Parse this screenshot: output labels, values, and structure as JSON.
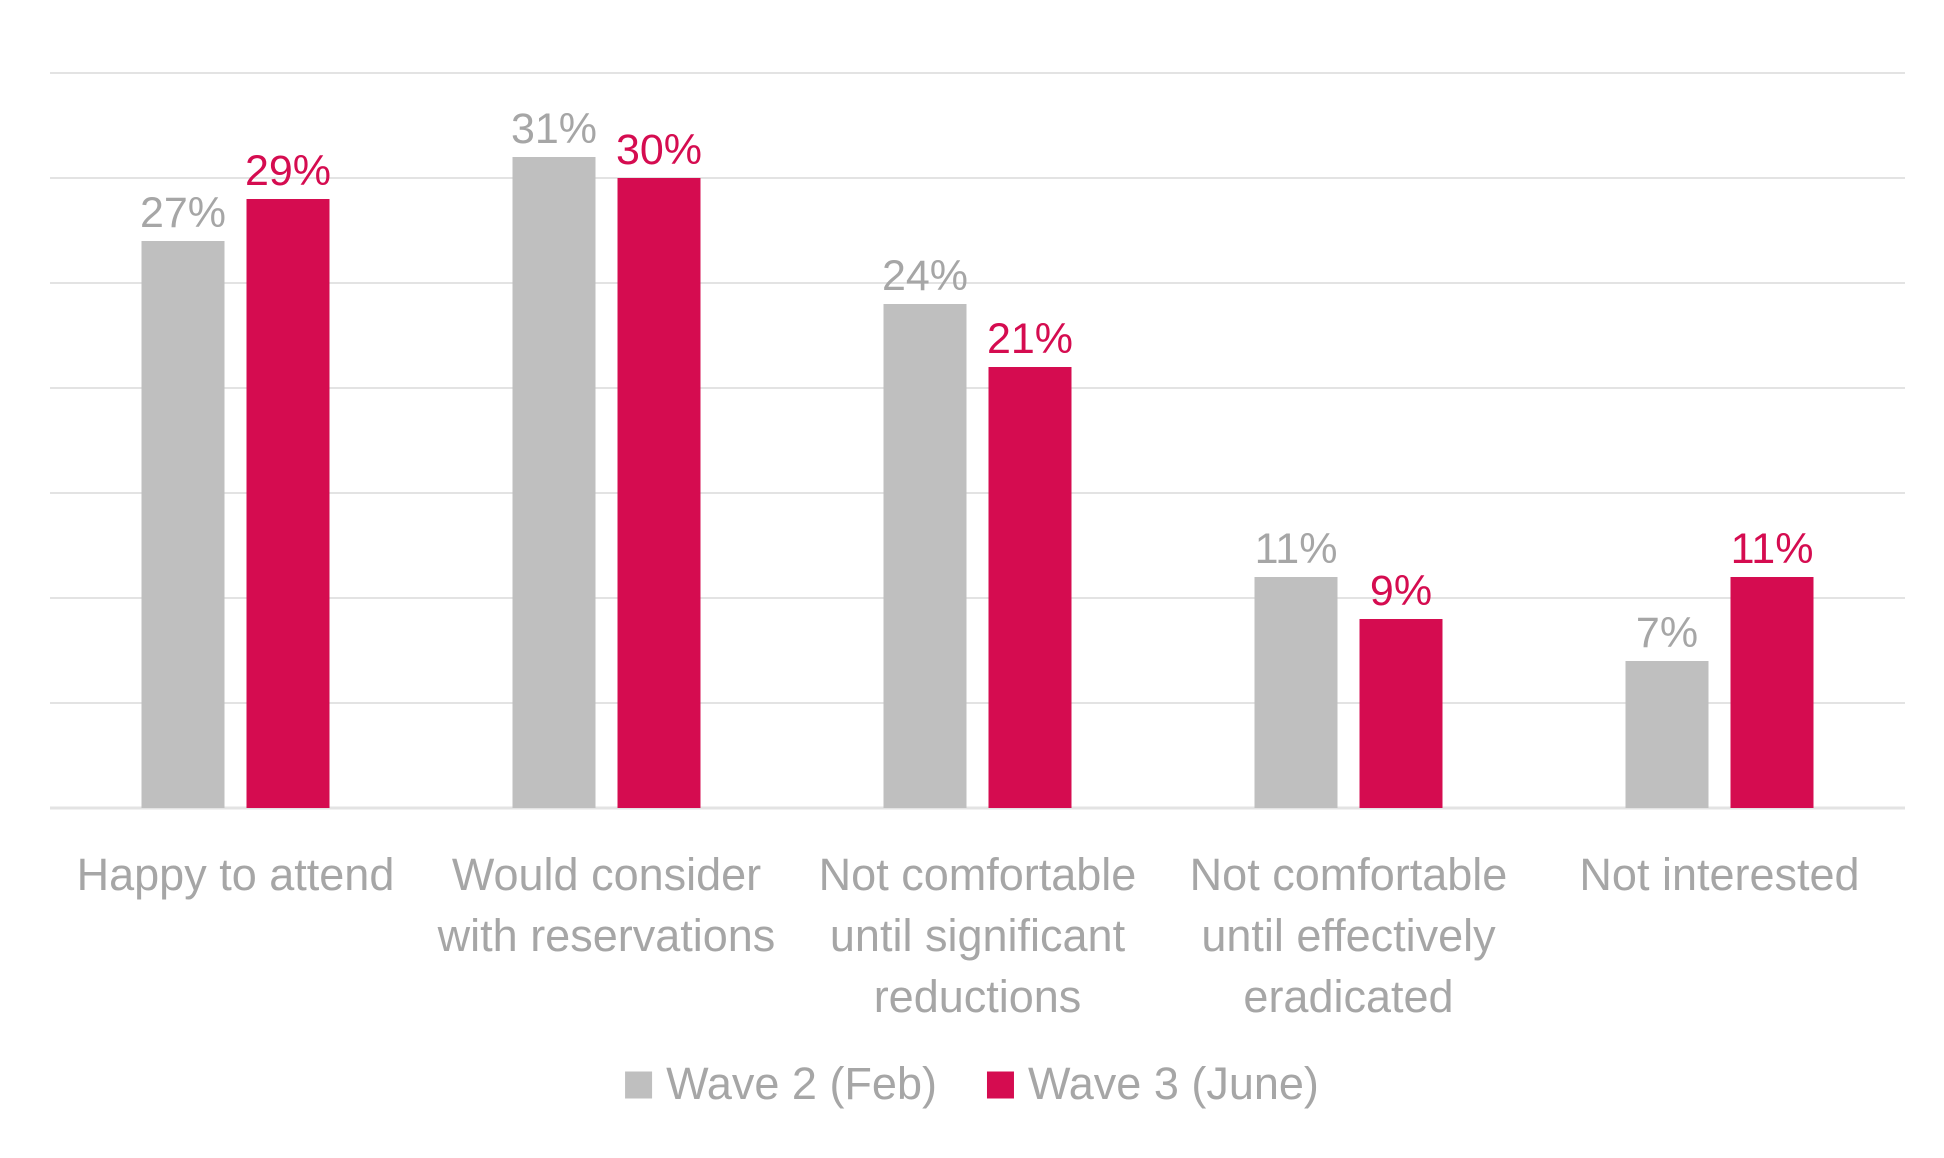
{
  "chart_data": {
    "type": "bar",
    "categories": [
      [
        "Happy to attend"
      ],
      [
        "Would consider",
        "with reservations"
      ],
      [
        "Not comfortable",
        "until significant",
        "reductions"
      ],
      [
        "Not comfortable",
        "until effectively",
        "eradicated"
      ],
      [
        "Not interested"
      ]
    ],
    "series": [
      {
        "name": "Wave 2 (Feb)",
        "values": [
          27,
          31,
          24,
          11,
          7
        ],
        "labels": [
          "27%",
          "31%",
          "24%",
          "11%",
          "7%"
        ],
        "color": "#bfbfbf",
        "label_color": "#a6a6a6"
      },
      {
        "name": "Wave 3 (June)",
        "values": [
          29,
          30,
          21,
          9,
          11
        ],
        "labels": [
          "29%",
          "30%",
          "21%",
          "9%",
          "11%"
        ],
        "color": "#d50c50",
        "label_color": "#d50c50"
      }
    ],
    "ylim": [
      0,
      35
    ],
    "grid": true,
    "legend": "bottom",
    "gridline_color": "#e3e3e3"
  }
}
